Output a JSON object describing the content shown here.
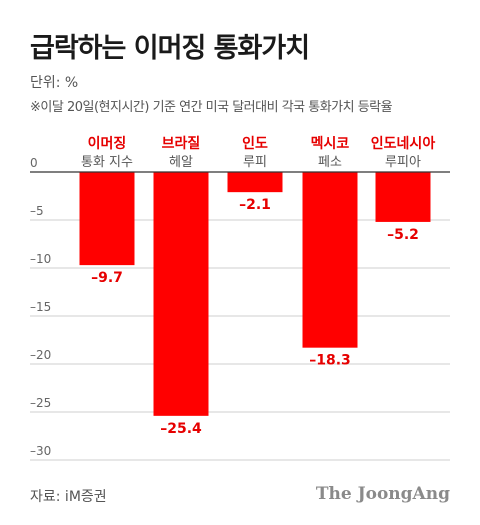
{
  "title": "급락하는 이머징 통화가치",
  "unit_label": "단위: %",
  "note": "※이달 20일(현지시간) 기준 연간 미국 달러대비 각국 통화가치 등락율",
  "source": "자료: iM증권",
  "brand": "The JoongAng",
  "colors": {
    "bar": "#ff0000",
    "label_red": "#e60000",
    "grid": "#cfcfcf",
    "axis": "#333333",
    "sublabel": "#555555"
  },
  "chart_data": {
    "type": "bar",
    "title": "급락하는 이머징 통화가치",
    "ylabel": "",
    "xlabel": "",
    "ylim": [
      -30,
      0
    ],
    "yticks": [
      0,
      -5,
      -10,
      -15,
      -20,
      -25,
      -30
    ],
    "ytick_labels": [
      "0",
      "–5",
      "–10",
      "–15",
      "–20",
      "–25",
      "–30"
    ],
    "grid": true,
    "categories": [
      {
        "name": "이머징",
        "sub": "통화 지수"
      },
      {
        "name": "브라질",
        "sub": "헤알"
      },
      {
        "name": "인도",
        "sub": "루피"
      },
      {
        "name": "멕시코",
        "sub": "페소"
      },
      {
        "name": "인도네시아",
        "sub": "루피아"
      }
    ],
    "values": [
      -9.7,
      -25.4,
      -2.1,
      -18.3,
      -5.2
    ],
    "value_labels": [
      "–9.7",
      "–25.4",
      "–2.1",
      "–18.3",
      "–5.2"
    ]
  }
}
